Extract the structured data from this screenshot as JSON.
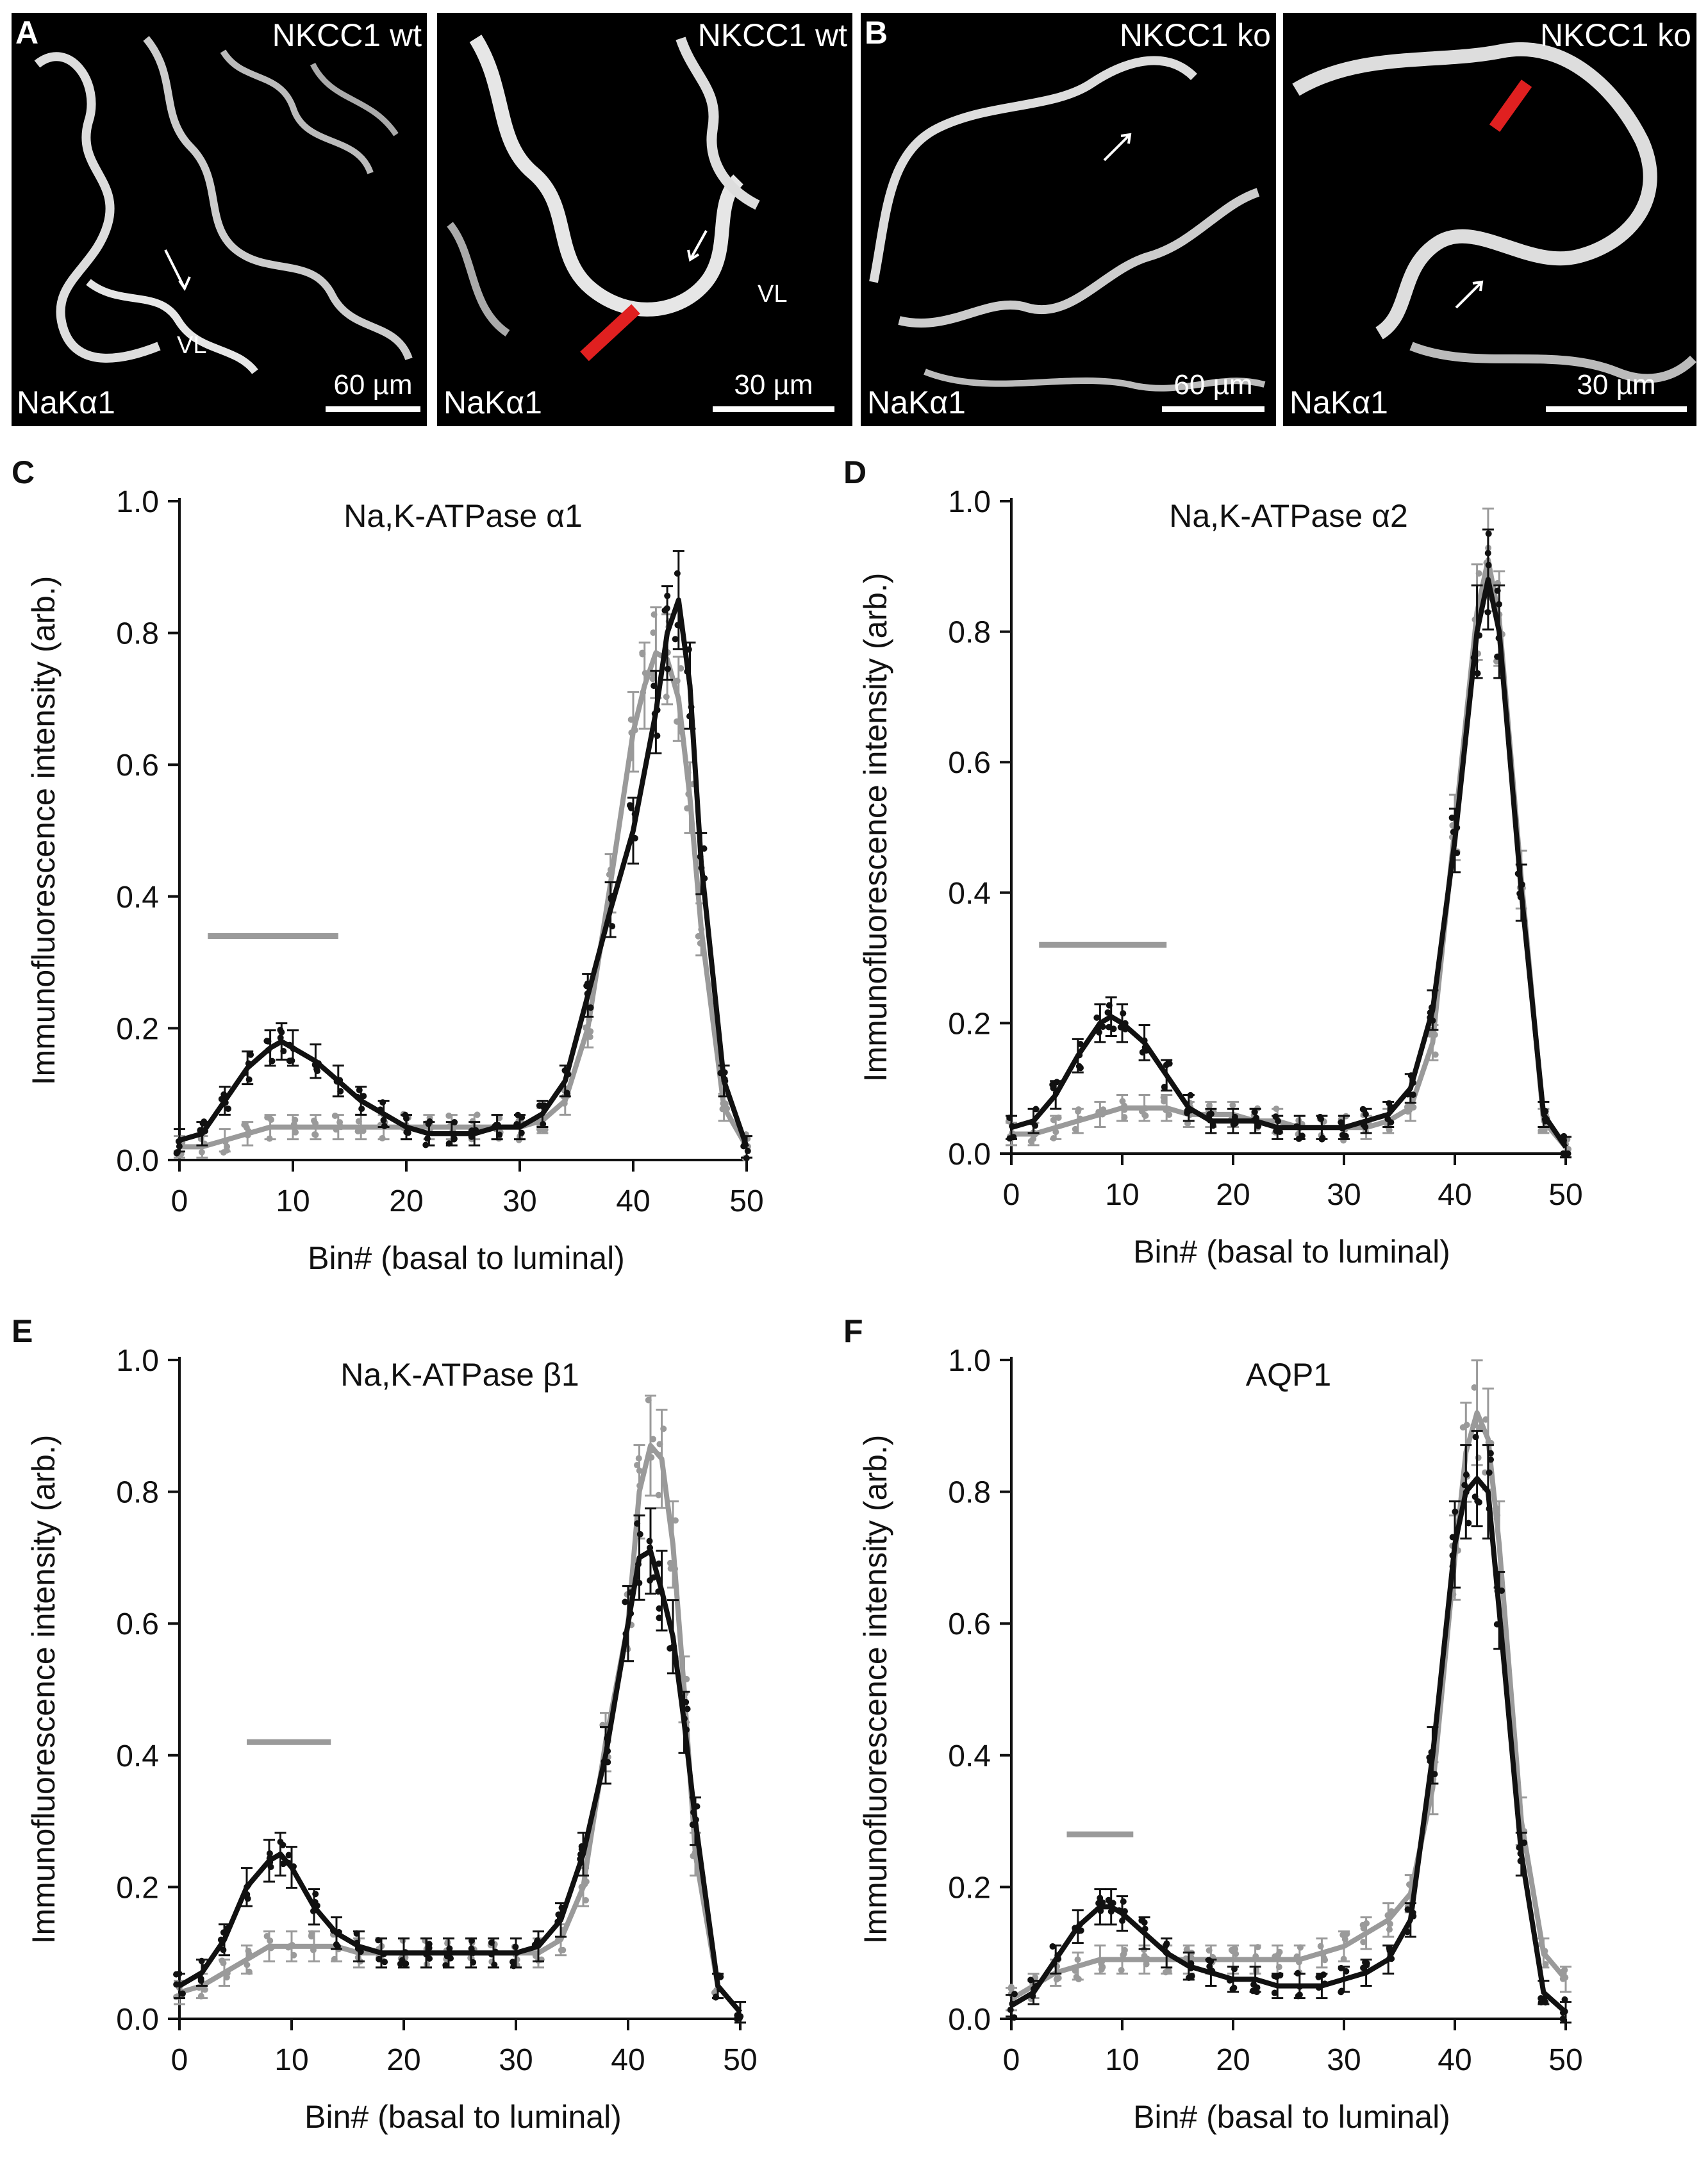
{
  "micrographs": [
    {
      "letter": "A",
      "condition": "NKCC1 wt",
      "stain": "NaKα1",
      "scale": "60 µm",
      "region": "VL"
    },
    {
      "letter": "",
      "condition": "NKCC1 wt",
      "stain": "NaKα1",
      "scale": "30 µm",
      "region": "VL"
    },
    {
      "letter": "B",
      "condition": "NKCC1 ko",
      "stain": "NaKα1",
      "scale": "60 µm",
      "region": ""
    },
    {
      "letter": "",
      "condition": "NKCC1 ko",
      "stain": "NaKα1",
      "scale": "30 µm",
      "region": ""
    }
  ],
  "colors": {
    "wt": "#111111",
    "ko": "#9a9a9a",
    "scan_line": "#e02020"
  },
  "chart_data": [
    {
      "panel": "C",
      "type": "line",
      "title": "Na,K-ATPase α1",
      "xlabel": "Bin# (basal to luminal)",
      "ylabel": "Immunofluorescence intensity (arb.)",
      "xlim": [
        0,
        50
      ],
      "ylim": [
        0,
        1.0
      ],
      "xticks": [
        "0",
        "10",
        "20",
        "30",
        "40",
        "50"
      ],
      "yticks": [
        "0.0",
        "0.2",
        "0.4",
        "0.6",
        "0.8",
        "1.0"
      ],
      "bar_range": [
        2.5,
        14
      ],
      "bar_y": 0.34,
      "series": [
        {
          "name": "NKCC1 wt",
          "color": "#111111",
          "x": [
            0,
            2,
            4,
            6,
            8,
            9,
            10,
            12,
            14,
            16,
            18,
            20,
            22,
            24,
            26,
            28,
            30,
            32,
            34,
            36,
            38,
            40,
            42,
            43,
            44,
            45,
            46,
            48,
            50
          ],
          "y": [
            0.03,
            0.04,
            0.09,
            0.14,
            0.17,
            0.18,
            0.17,
            0.15,
            0.12,
            0.09,
            0.07,
            0.05,
            0.04,
            0.04,
            0.04,
            0.05,
            0.05,
            0.07,
            0.12,
            0.25,
            0.38,
            0.5,
            0.68,
            0.8,
            0.85,
            0.72,
            0.45,
            0.12,
            0.02
          ]
        },
        {
          "name": "NKCC1 ko",
          "color": "#9a9a9a",
          "x": [
            0,
            2,
            4,
            6,
            8,
            10,
            12,
            14,
            16,
            18,
            20,
            22,
            24,
            26,
            28,
            30,
            32,
            34,
            36,
            38,
            40,
            41,
            42,
            43,
            44,
            45,
            46,
            48,
            50
          ],
          "y": [
            0.02,
            0.02,
            0.03,
            0.04,
            0.05,
            0.05,
            0.05,
            0.05,
            0.05,
            0.05,
            0.05,
            0.05,
            0.05,
            0.05,
            0.05,
            0.05,
            0.06,
            0.09,
            0.2,
            0.42,
            0.65,
            0.72,
            0.77,
            0.76,
            0.7,
            0.55,
            0.35,
            0.08,
            0.02
          ]
        }
      ]
    },
    {
      "panel": "D",
      "type": "line",
      "title": "Na,K-ATPase α2",
      "xlabel": "Bin# (basal to luminal)",
      "ylabel": "Immunofluorescence intensity (arb.)",
      "xlim": [
        0,
        50
      ],
      "ylim": [
        0,
        1.0
      ],
      "xticks": [
        "0",
        "10",
        "20",
        "30",
        "40",
        "50"
      ],
      "yticks": [
        "0.0",
        "0.2",
        "0.4",
        "0.6",
        "0.8",
        "1.0"
      ],
      "bar_range": [
        2.5,
        14
      ],
      "bar_y": 0.32,
      "series": [
        {
          "name": "NKCC1 wt",
          "color": "#111111",
          "x": [
            0,
            2,
            4,
            6,
            8,
            9,
            10,
            12,
            14,
            16,
            18,
            20,
            22,
            24,
            26,
            28,
            30,
            32,
            34,
            36,
            38,
            40,
            42,
            43,
            44,
            46,
            48,
            50
          ],
          "y": [
            0.04,
            0.05,
            0.09,
            0.15,
            0.2,
            0.21,
            0.2,
            0.17,
            0.12,
            0.07,
            0.05,
            0.05,
            0.05,
            0.04,
            0.04,
            0.04,
            0.04,
            0.05,
            0.06,
            0.1,
            0.22,
            0.48,
            0.8,
            0.88,
            0.8,
            0.4,
            0.06,
            0.01
          ]
        },
        {
          "name": "NKCC1 ko",
          "color": "#9a9a9a",
          "x": [
            0,
            2,
            4,
            6,
            8,
            10,
            12,
            14,
            16,
            18,
            20,
            22,
            24,
            26,
            28,
            30,
            32,
            34,
            36,
            38,
            40,
            42,
            43,
            44,
            46,
            48,
            50
          ],
          "y": [
            0.03,
            0.03,
            0.04,
            0.05,
            0.06,
            0.07,
            0.07,
            0.07,
            0.06,
            0.06,
            0.06,
            0.05,
            0.05,
            0.04,
            0.04,
            0.04,
            0.04,
            0.05,
            0.07,
            0.17,
            0.5,
            0.83,
            0.91,
            0.82,
            0.42,
            0.05,
            0.01
          ]
        }
      ]
    },
    {
      "panel": "E",
      "type": "line",
      "title": "Na,K-ATPase β1",
      "xlabel": "Bin# (basal to luminal)",
      "ylabel": "Immunofluorescence intensity (arb.)",
      "xlim": [
        0,
        50
      ],
      "ylim": [
        0,
        1.0
      ],
      "xticks": [
        "0",
        "10",
        "20",
        "30",
        "40",
        "50"
      ],
      "yticks": [
        "0.0",
        "0.2",
        "0.4",
        "0.6",
        "0.8",
        "1.0"
      ],
      "bar_range": [
        6,
        13.5
      ],
      "bar_y": 0.42,
      "series": [
        {
          "name": "NKCC1 wt",
          "color": "#111111",
          "x": [
            0,
            2,
            4,
            6,
            8,
            9,
            10,
            12,
            14,
            16,
            18,
            20,
            22,
            24,
            26,
            28,
            30,
            32,
            34,
            36,
            38,
            40,
            41,
            42,
            43,
            44,
            45,
            46,
            48,
            50
          ],
          "y": [
            0.05,
            0.07,
            0.12,
            0.2,
            0.24,
            0.25,
            0.23,
            0.17,
            0.13,
            0.11,
            0.1,
            0.1,
            0.1,
            0.1,
            0.1,
            0.1,
            0.1,
            0.11,
            0.15,
            0.25,
            0.4,
            0.6,
            0.7,
            0.71,
            0.65,
            0.58,
            0.45,
            0.3,
            0.05,
            0.01
          ]
        },
        {
          "name": "NKCC1 ko",
          "color": "#9a9a9a",
          "x": [
            0,
            2,
            4,
            6,
            8,
            10,
            12,
            14,
            16,
            18,
            20,
            22,
            24,
            26,
            28,
            30,
            32,
            34,
            36,
            38,
            40,
            41,
            42,
            43,
            44,
            45,
            46,
            48,
            50
          ],
          "y": [
            0.04,
            0.05,
            0.07,
            0.09,
            0.11,
            0.11,
            0.11,
            0.11,
            0.1,
            0.1,
            0.1,
            0.1,
            0.1,
            0.1,
            0.1,
            0.1,
            0.1,
            0.12,
            0.2,
            0.42,
            0.6,
            0.8,
            0.87,
            0.85,
            0.72,
            0.5,
            0.25,
            0.05,
            0.01
          ]
        }
      ]
    },
    {
      "panel": "F",
      "type": "line",
      "title": "AQP1",
      "xlabel": "Bin# (basal to luminal)",
      "ylabel": "Immunofluorescence intensity (arb.)",
      "xlim": [
        0,
        50
      ],
      "ylim": [
        0,
        1.0
      ],
      "xticks": [
        "0",
        "10",
        "20",
        "30",
        "40",
        "50"
      ],
      "yticks": [
        "0.0",
        "0.2",
        "0.4",
        "0.6",
        "0.8",
        "1.0"
      ],
      "bar_range": [
        5,
        11
      ],
      "bar_y": 0.28,
      "series": [
        {
          "name": "NKCC1 wt",
          "color": "#111111",
          "x": [
            0,
            2,
            4,
            6,
            8,
            9,
            10,
            12,
            14,
            16,
            18,
            20,
            22,
            24,
            26,
            28,
            30,
            32,
            34,
            36,
            38,
            40,
            41,
            42,
            43,
            44,
            46,
            48,
            50
          ],
          "y": [
            0.02,
            0.04,
            0.09,
            0.14,
            0.17,
            0.17,
            0.16,
            0.13,
            0.1,
            0.08,
            0.07,
            0.06,
            0.06,
            0.05,
            0.05,
            0.05,
            0.06,
            0.07,
            0.09,
            0.15,
            0.4,
            0.72,
            0.8,
            0.82,
            0.8,
            0.62,
            0.25,
            0.04,
            0.01
          ]
        },
        {
          "name": "NKCC1 ko",
          "color": "#9a9a9a",
          "x": [
            0,
            2,
            4,
            6,
            8,
            10,
            12,
            14,
            16,
            18,
            20,
            22,
            24,
            26,
            28,
            30,
            32,
            34,
            36,
            38,
            40,
            41,
            42,
            43,
            44,
            46,
            48,
            50
          ],
          "y": [
            0.03,
            0.05,
            0.07,
            0.08,
            0.09,
            0.09,
            0.09,
            0.09,
            0.09,
            0.09,
            0.09,
            0.09,
            0.09,
            0.09,
            0.1,
            0.11,
            0.13,
            0.15,
            0.19,
            0.35,
            0.7,
            0.86,
            0.92,
            0.88,
            0.72,
            0.3,
            0.1,
            0.06
          ]
        }
      ]
    }
  ]
}
